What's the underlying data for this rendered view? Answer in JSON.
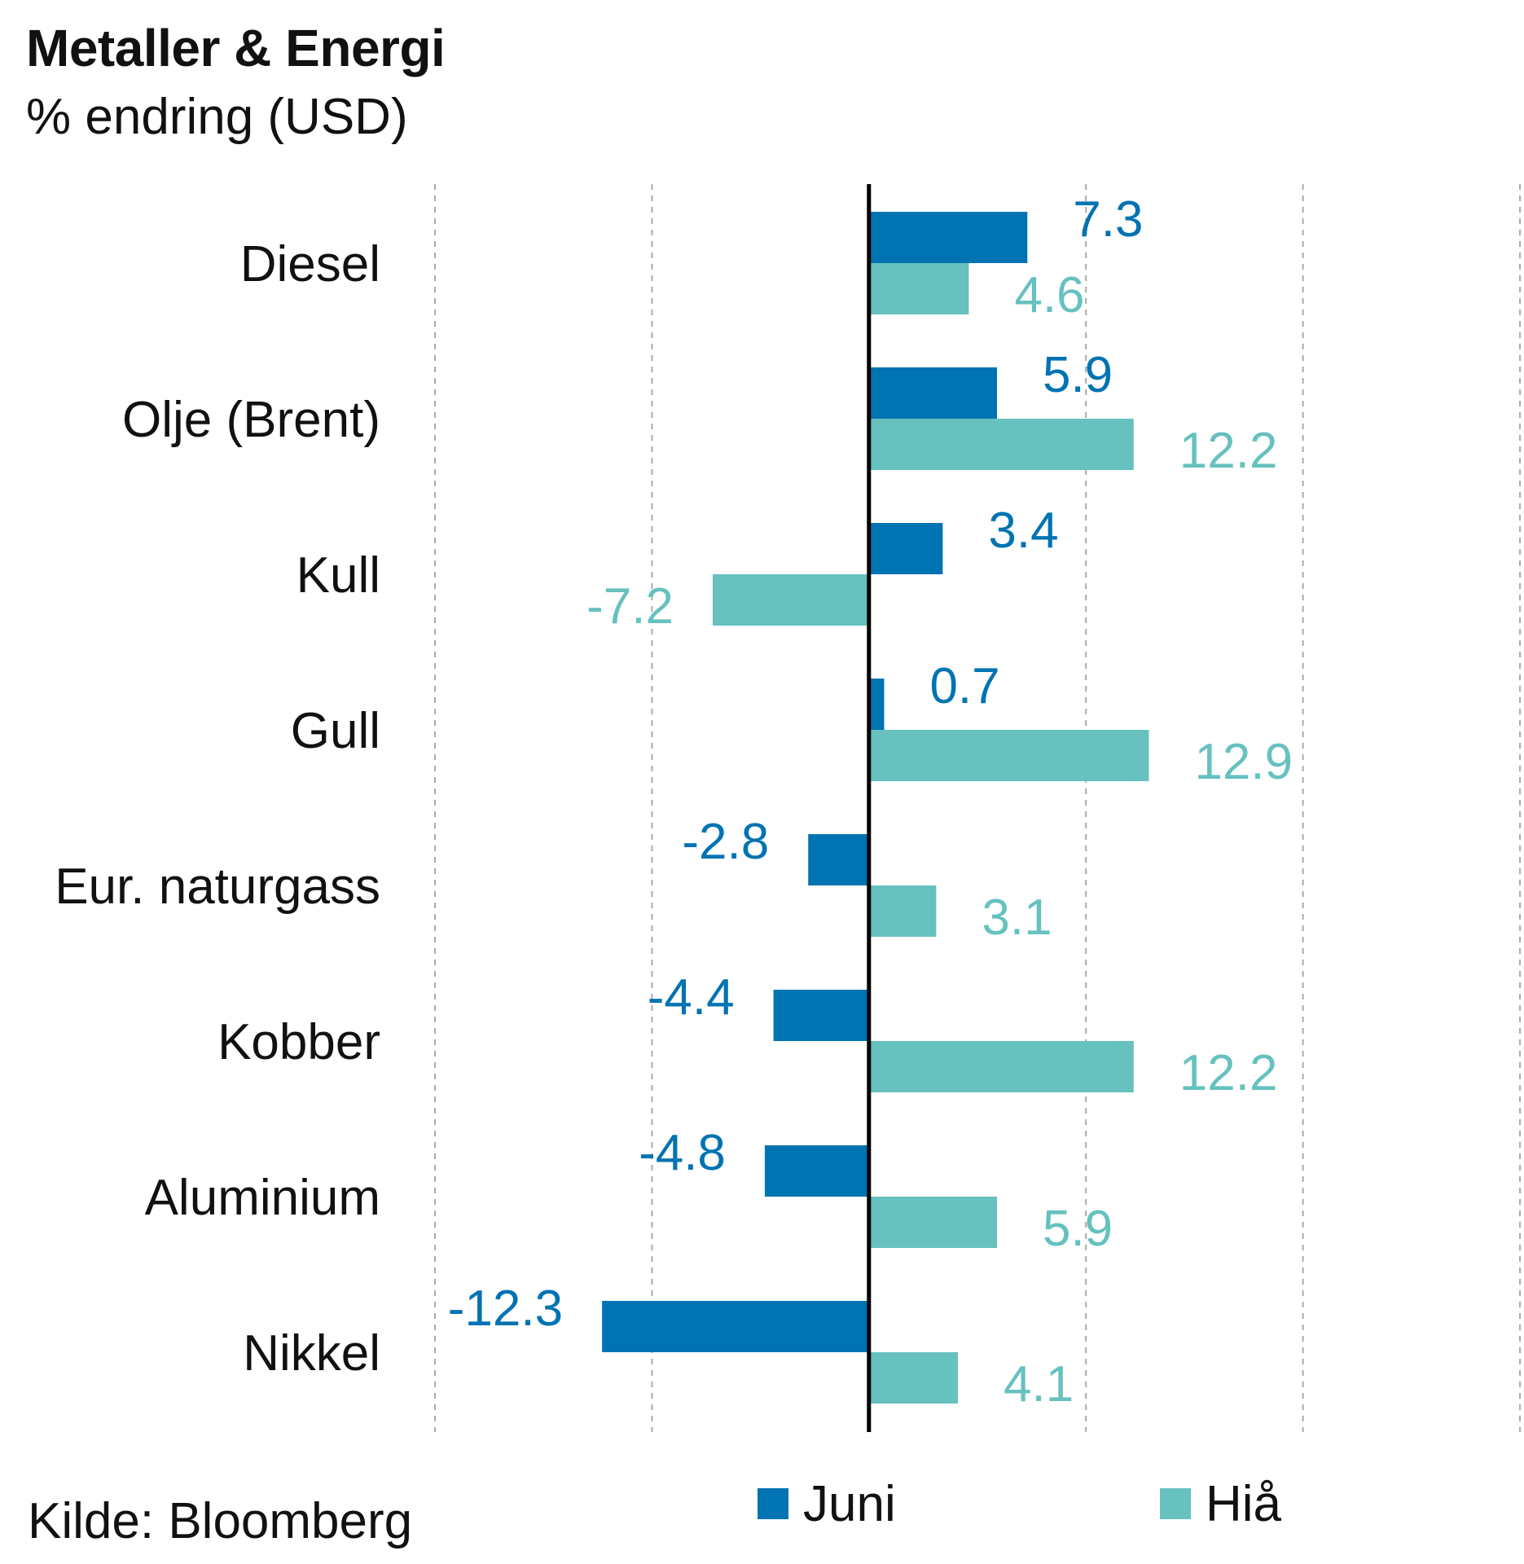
{
  "header": {
    "title": "Metaller & Energi",
    "subtitle": "% endring (USD)"
  },
  "footer": {
    "source": "Kilde: Bloomberg"
  },
  "colors": {
    "juni": "#0073b2",
    "hia": "#66c1bf",
    "axis": "#000000",
    "grid": "#aaaaaa"
  },
  "chart_data": {
    "type": "bar",
    "orientation": "horizontal",
    "title": "Metaller & Energi",
    "subtitle": "% endring (USD)",
    "categories": [
      "Diesel",
      "Olje (Brent)",
      "Kull",
      "Gull",
      "Eur. naturgass",
      "Kobber",
      "Aluminium",
      "Nikkel"
    ],
    "series": [
      {
        "name": "Juni",
        "values": [
          7.3,
          5.9,
          3.4,
          0.7,
          -2.8,
          -4.4,
          -4.8,
          -12.3
        ],
        "labels": [
          "7.3",
          "5.9",
          "3.4",
          "0.7",
          "-2.8",
          "-4.4",
          "-4.8",
          "-12.3"
        ]
      },
      {
        "name": "Hiå",
        "values": [
          4.6,
          12.2,
          -7.2,
          12.9,
          3.1,
          12.2,
          5.9,
          4.1
        ],
        "labels": [
          "4.6",
          "12.2",
          "-7.2",
          "12.9",
          "3.1",
          "12.2",
          "5.9",
          "4.1"
        ]
      }
    ],
    "xlim": [
      -20,
      30
    ],
    "grid": true,
    "legend_position": "bottom"
  }
}
